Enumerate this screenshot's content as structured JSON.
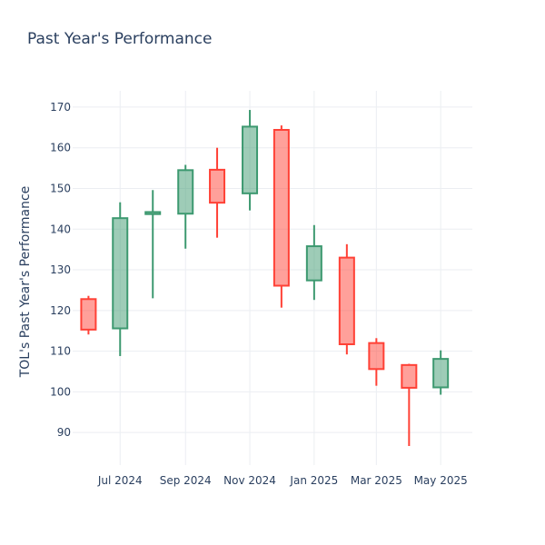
{
  "chart_data": {
    "type": "candlestick",
    "title": "Past Year's Performance",
    "ylabel": "TOL's Past Year's Performance",
    "xlabel": "",
    "ylim": [
      82,
      174
    ],
    "yticks": [
      90,
      100,
      110,
      120,
      130,
      140,
      150,
      160,
      170
    ],
    "xlim": [
      "2024-05-17",
      "2025-05-31"
    ],
    "xticks": [
      {
        "date": "2024-07-01",
        "label": "Jul 2024"
      },
      {
        "date": "2024-09-01",
        "label": "Sep 2024"
      },
      {
        "date": "2024-11-01",
        "label": "Nov 2024"
      },
      {
        "date": "2025-01-01",
        "label": "Jan 2025"
      },
      {
        "date": "2025-03-01",
        "label": "Mar 2025"
      },
      {
        "date": "2025-05-01",
        "label": "May 2025"
      }
    ],
    "increasing_color": "#3d9970",
    "decreasing_color": "#ff4136",
    "grid": true,
    "candles": [
      {
        "date": "2024-06-01",
        "open": 122.8,
        "high": 123.6,
        "low": 114.1,
        "close": 115.3
      },
      {
        "date": "2024-07-01",
        "open": 115.6,
        "high": 146.6,
        "low": 108.8,
        "close": 142.7
      },
      {
        "date": "2024-08-01",
        "open": 143.7,
        "high": 149.6,
        "low": 123.0,
        "close": 144.2
      },
      {
        "date": "2024-09-01",
        "open": 143.8,
        "high": 155.8,
        "low": 135.2,
        "close": 154.5
      },
      {
        "date": "2024-10-01",
        "open": 154.6,
        "high": 160.0,
        "low": 137.9,
        "close": 146.5
      },
      {
        "date": "2024-11-01",
        "open": 148.8,
        "high": 169.3,
        "low": 144.6,
        "close": 165.2
      },
      {
        "date": "2024-12-01",
        "open": 164.4,
        "high": 165.5,
        "low": 120.7,
        "close": 126.1
      },
      {
        "date": "2025-01-01",
        "open": 127.4,
        "high": 141.0,
        "low": 122.6,
        "close": 135.8
      },
      {
        "date": "2025-02-01",
        "open": 133.0,
        "high": 136.3,
        "low": 109.2,
        "close": 111.7
      },
      {
        "date": "2025-03-01",
        "open": 112.0,
        "high": 113.2,
        "low": 101.5,
        "close": 105.6
      },
      {
        "date": "2025-04-01",
        "open": 106.6,
        "high": 106.9,
        "low": 86.7,
        "close": 101.0
      },
      {
        "date": "2025-05-01",
        "open": 101.1,
        "high": 110.2,
        "low": 99.3,
        "close": 108.1
      }
    ]
  }
}
